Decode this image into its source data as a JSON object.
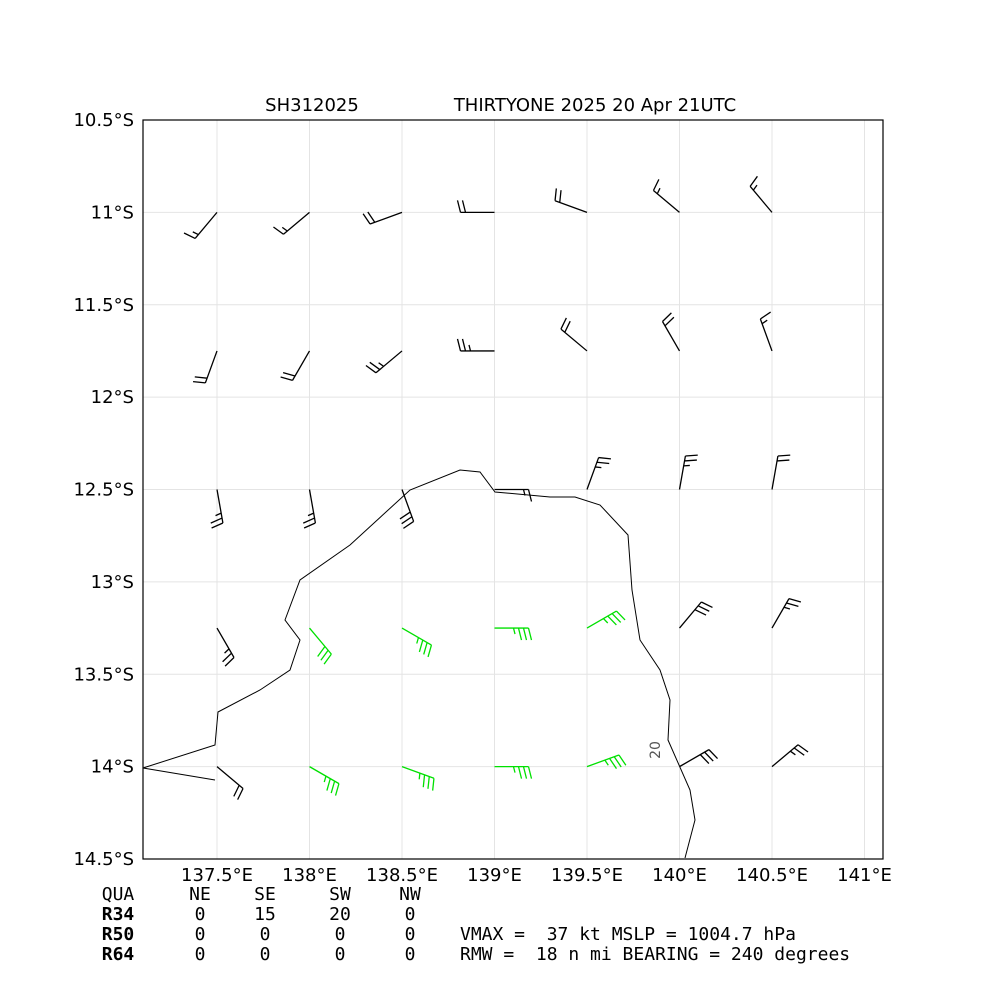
{
  "chart_data": {
    "type": "barbs",
    "title_left": "SH312025",
    "title_right": "THIRTYONE 2025 20 Apr 21UTC",
    "xlim": [
      137.1,
      141.1
    ],
    "ylim": [
      -14.5,
      -10.5
    ],
    "xticks": [
      {
        "value": 137.5,
        "label": "137.5°E"
      },
      {
        "value": 138,
        "label": "138°E"
      },
      {
        "value": 138.5,
        "label": "138.5°E"
      },
      {
        "value": 139,
        "label": "139°E"
      },
      {
        "value": 139.5,
        "label": "139.5°E"
      },
      {
        "value": 140,
        "label": "140°E"
      },
      {
        "value": 140.5,
        "label": "140.5°E"
      },
      {
        "value": 141,
        "label": "141°E"
      }
    ],
    "yticks": [
      {
        "value": -10.5,
        "label": "10.5°S"
      },
      {
        "value": -11,
        "label": "11°S"
      },
      {
        "value": -11.5,
        "label": "11.5°S"
      },
      {
        "value": -12,
        "label": "12°S"
      },
      {
        "value": -12.5,
        "label": "12.5°S"
      },
      {
        "value": -13,
        "label": "13°S"
      },
      {
        "value": -13.5,
        "label": "13.5°S"
      },
      {
        "value": -14,
        "label": "14°S"
      },
      {
        "value": -14.5,
        "label": "14.5°S"
      }
    ],
    "grid": true,
    "barb_colors": [
      "#000000",
      "#00e000",
      "#f0a000"
    ],
    "barb_color_thresholds": [
      34,
      50
    ],
    "contour_label": 20,
    "barbs": {
      "lon": [
        137.5,
        138,
        138.5,
        139,
        139.5,
        140,
        140.5,
        137.5,
        138,
        138.5,
        139,
        139.5,
        140,
        140.5,
        137.5,
        138,
        138.5,
        139,
        139.5,
        140,
        140.5,
        137.5,
        138,
        138.5,
        139,
        139.5,
        140,
        140.5,
        137.5,
        138,
        138.5,
        139,
        139.5,
        140,
        140.5
      ],
      "lat": [
        -11,
        -11,
        -11,
        -11,
        -11,
        -11,
        -11,
        -11.75,
        -11.75,
        -11.75,
        -11.75,
        -11.75,
        -11.75,
        -11.75,
        -12.5,
        -12.5,
        -12.5,
        -12.5,
        -12.5,
        -12.5,
        -12.5,
        -13.25,
        -13.25,
        -13.25,
        -13.25,
        -13.25,
        -13.25,
        -13.25,
        -14,
        -14,
        -14,
        -14,
        -14,
        -14,
        -14
      ],
      "speed": [
        15,
        18,
        20,
        20,
        20,
        18,
        15,
        20,
        22,
        25,
        25,
        22,
        20,
        18,
        25,
        28,
        30,
        15,
        28,
        25,
        22,
        25,
        34,
        37,
        36,
        35,
        30,
        25,
        22,
        35,
        36,
        36,
        35,
        32,
        28
      ],
      "dir": [
        220,
        230,
        250,
        270,
        290,
        310,
        320,
        200,
        210,
        230,
        270,
        310,
        330,
        340,
        170,
        170,
        160,
        90,
        20,
        10,
        10,
        150,
        140,
        120,
        90,
        60,
        40,
        30,
        130,
        120,
        110,
        90,
        70,
        60,
        50
      ]
    },
    "table": {
      "header": [
        "QUA",
        "NE",
        "SE",
        "SW",
        "NW"
      ],
      "rows": [
        [
          "R34",
          0,
          15,
          20,
          0
        ],
        [
          "R50",
          0,
          0,
          0,
          0
        ],
        [
          "R64",
          0,
          0,
          0,
          0
        ]
      ]
    },
    "info": [
      "VMAX =  37 kt MSLP = 1004.7 hPa",
      "RMW =  18 n mi BEARING = 240 degrees"
    ]
  }
}
